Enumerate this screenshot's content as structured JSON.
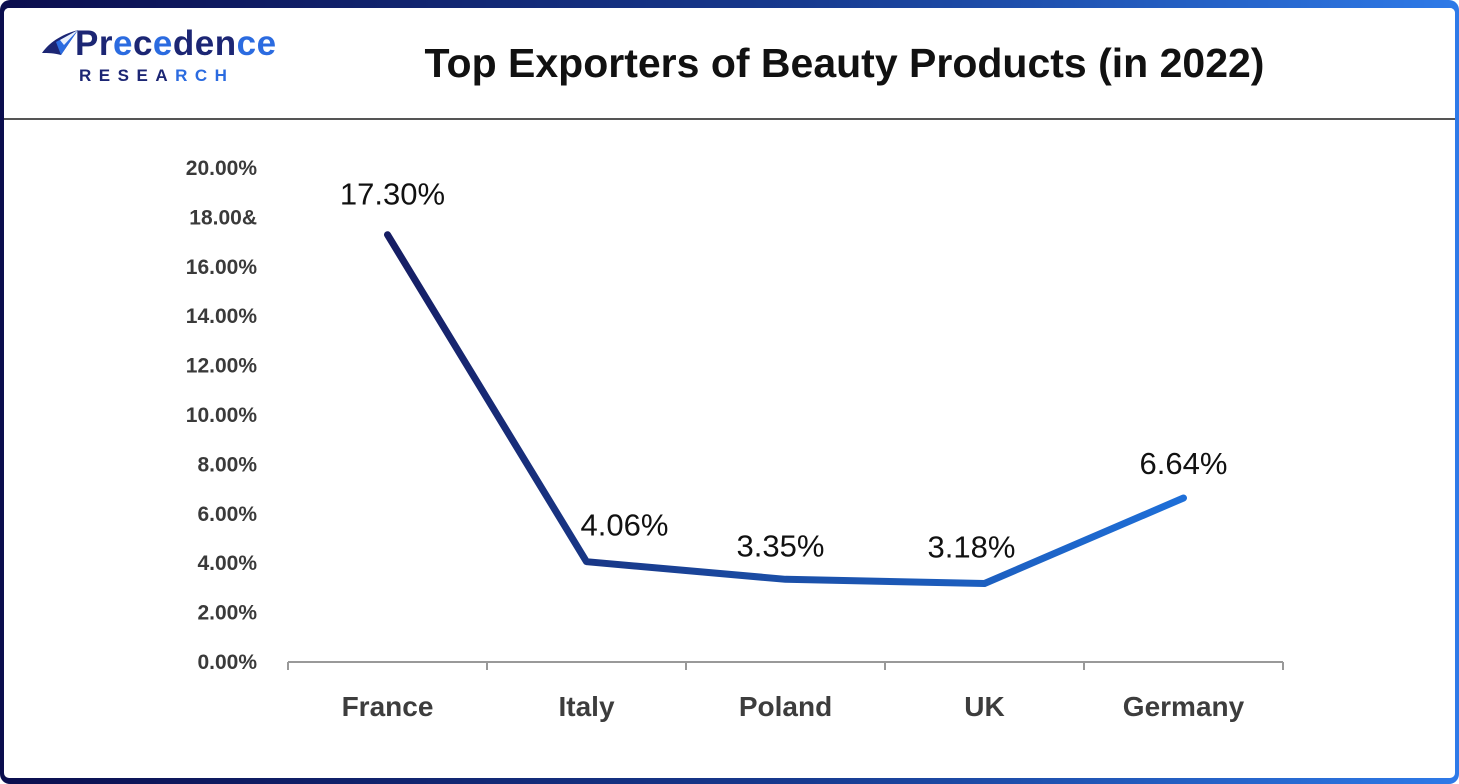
{
  "header": {
    "logo": {
      "line1": "Precedence",
      "line2": "RESEARCH"
    },
    "title": "Top Exporters of Beauty Products (in 2022)"
  },
  "colors": {
    "frame_gradient_start": "#0b0e4e",
    "frame_gradient_end": "#2e7ae8",
    "separator": "#555555",
    "logo_navy": "#1c2674",
    "logo_blue": "#2b6be0",
    "title_text": "#111111",
    "axis_line": "#999999",
    "ytick_label": "#3a3a3a",
    "category_label": "#3d3d3d",
    "data_label": "#111111",
    "line_gradient_start": "#161d63",
    "line_gradient_mid": "#1b4fa8",
    "line_gradient_end": "#1e6fd8"
  },
  "chart_data": {
    "type": "line",
    "title": "Top Exporters of Beauty Products (in 2022)",
    "categories": [
      "France",
      "Italy",
      "Poland",
      "UK",
      "Germany"
    ],
    "values": [
      17.3,
      4.06,
      3.35,
      3.18,
      6.64
    ],
    "point_labels": [
      "17.30%",
      "4.06%",
      "3.35%",
      "3.18%",
      "6.64%"
    ],
    "ylim": [
      0,
      20
    ],
    "ytick_step": 2,
    "ytick_labels": [
      "0.00%",
      "2.00%",
      "4.00%",
      "6.00%",
      "8.00%",
      "10.00%",
      "12.00%",
      "14.00%",
      "16.00%",
      "18.00&",
      "20.00%"
    ],
    "xlabel": "",
    "ylabel": "",
    "grid": false,
    "legend": false
  }
}
